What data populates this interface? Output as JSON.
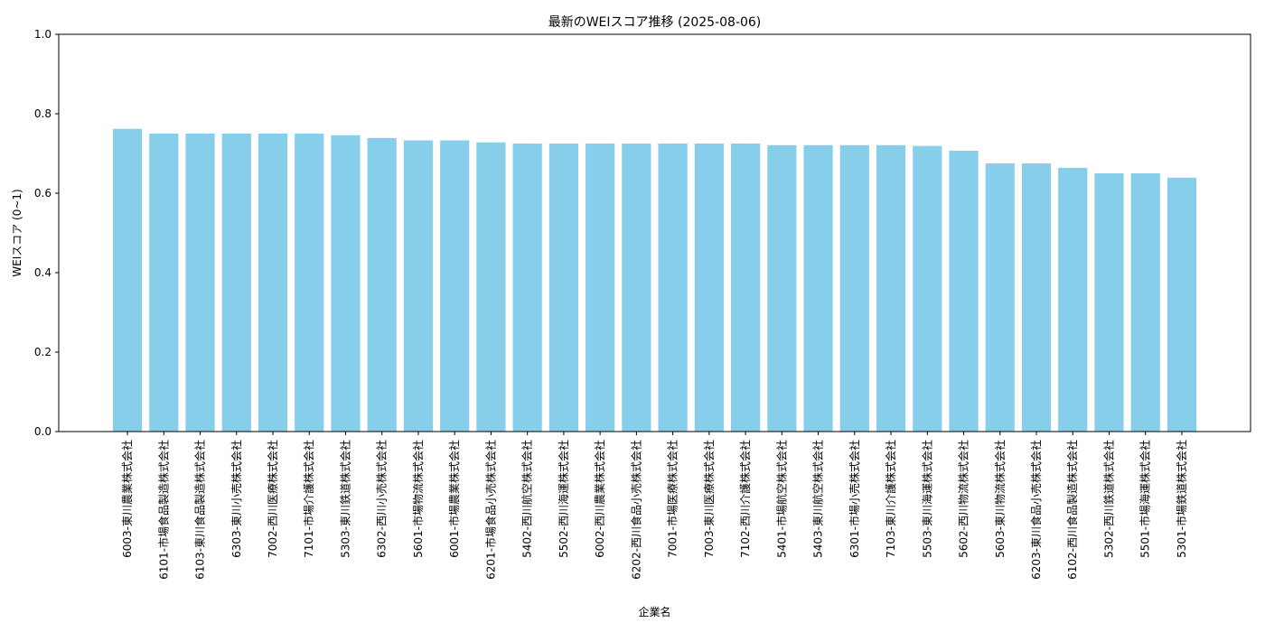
{
  "chart_data": {
    "type": "bar",
    "title": "最新のWEIスコア推移 (2025-08-06)",
    "xlabel": "企業名",
    "ylabel": "WEIスコア (0~1)",
    "ylim": [
      0,
      1.0
    ],
    "yticks": [
      "0.0",
      "0.2",
      "0.4",
      "0.6",
      "0.8",
      "1.0"
    ],
    "grid": false,
    "bar_color": "#87CEEB",
    "categories": [
      "6003-東川農業株式会社",
      "6101-市場食品製造株式会社",
      "6103-東川食品製造株式会社",
      "6303-東川小売株式会社",
      "7002-西川医療株式会社",
      "7101-市場介護株式会社",
      "5303-東川鉄道株式会社",
      "6302-西川小売株式会社",
      "5601-市場物流株式会社",
      "6001-市場農業株式会社",
      "6201-市場食品小売株式会社",
      "5402-西川航空株式会社",
      "5502-西川海運株式会社",
      "6002-西川農業株式会社",
      "6202-西川食品小売株式会社",
      "7001-市場医療株式会社",
      "7003-東川医療株式会社",
      "7102-西川介護株式会社",
      "5401-市場航空株式会社",
      "5403-東川航空株式会社",
      "6301-市場小売株式会社",
      "7103-東川介護株式会社",
      "5503-東川海運株式会社",
      "5602-西川物流株式会社",
      "5603-東川物流株式会社",
      "6203-東川食品小売株式会社",
      "6102-西川食品製造株式会社",
      "5302-西川鉄道株式会社",
      "5501-市場海運株式会社",
      "5301-市場鉄道株式会社"
    ],
    "values": [
      0.762,
      0.75,
      0.75,
      0.75,
      0.75,
      0.75,
      0.746,
      0.739,
      0.733,
      0.733,
      0.728,
      0.725,
      0.725,
      0.725,
      0.725,
      0.725,
      0.725,
      0.725,
      0.721,
      0.721,
      0.721,
      0.721,
      0.719,
      0.707,
      0.675,
      0.675,
      0.664,
      0.65,
      0.65,
      0.639
    ]
  }
}
